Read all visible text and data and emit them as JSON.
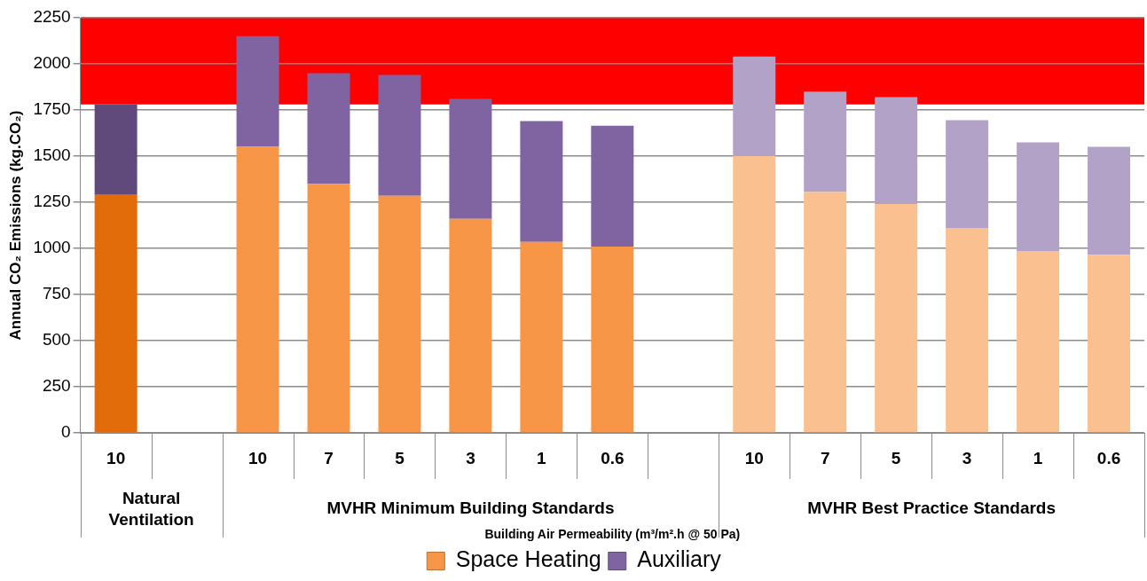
{
  "chart_data": {
    "type": "bar",
    "stacked": true,
    "ylabel": "Annual CO₂ Emissions (kg.CO₂)",
    "xlabel": "Building Air Permeability (m³/m².h @ 50 Pa)",
    "categories": [
      "10",
      null,
      "10",
      "7",
      "5",
      "3",
      "1",
      "0.6",
      null,
      "10",
      "7",
      "5",
      "3",
      "1",
      "0.6"
    ],
    "annotations": [
      "Natural Ventilation",
      "MVHR Minimum Building Standards",
      "MVHR Best Practice Standards"
    ],
    "series": [
      {
        "name": "Space Heating",
        "color": "#f79646",
        "colors": [
          "#e36c0a",
          null,
          "#f79646",
          "#f79646",
          "#f79646",
          "#f79646",
          "#f79646",
          "#f79646",
          null,
          "#fac090",
          "#fac090",
          "#fac090",
          "#fac090",
          "#fac090",
          "#fac090"
        ],
        "values": [
          1290,
          null,
          1550,
          1350,
          1285,
          1160,
          1035,
          1010,
          null,
          1500,
          1305,
          1240,
          1110,
          985,
          965
        ]
      },
      {
        "name": "Auxiliary",
        "color": "#8064a2",
        "colors": [
          "#604a7b",
          null,
          "#8064a2",
          "#8064a2",
          "#8064a2",
          "#8064a2",
          "#8064a2",
          "#8064a2",
          null,
          "#b3a2c7",
          "#b3a2c7",
          "#b3a2c7",
          "#b3a2c7",
          "#b3a2c7",
          "#b3a2c7"
        ],
        "values": [
          490,
          null,
          600,
          600,
          655,
          650,
          655,
          655,
          null,
          540,
          545,
          580,
          585,
          590,
          585
        ]
      }
    ],
    "ylim": [
      0,
      2250
    ],
    "yticks": [
      0,
      250,
      500,
      750,
      1000,
      1250,
      1500,
      1750,
      2000,
      2250
    ],
    "bands": [
      {
        "axis": "y",
        "from": 1780,
        "to": 2250,
        "color": "#ff0000"
      }
    ],
    "grid": "y",
    "legend": "bottom"
  }
}
